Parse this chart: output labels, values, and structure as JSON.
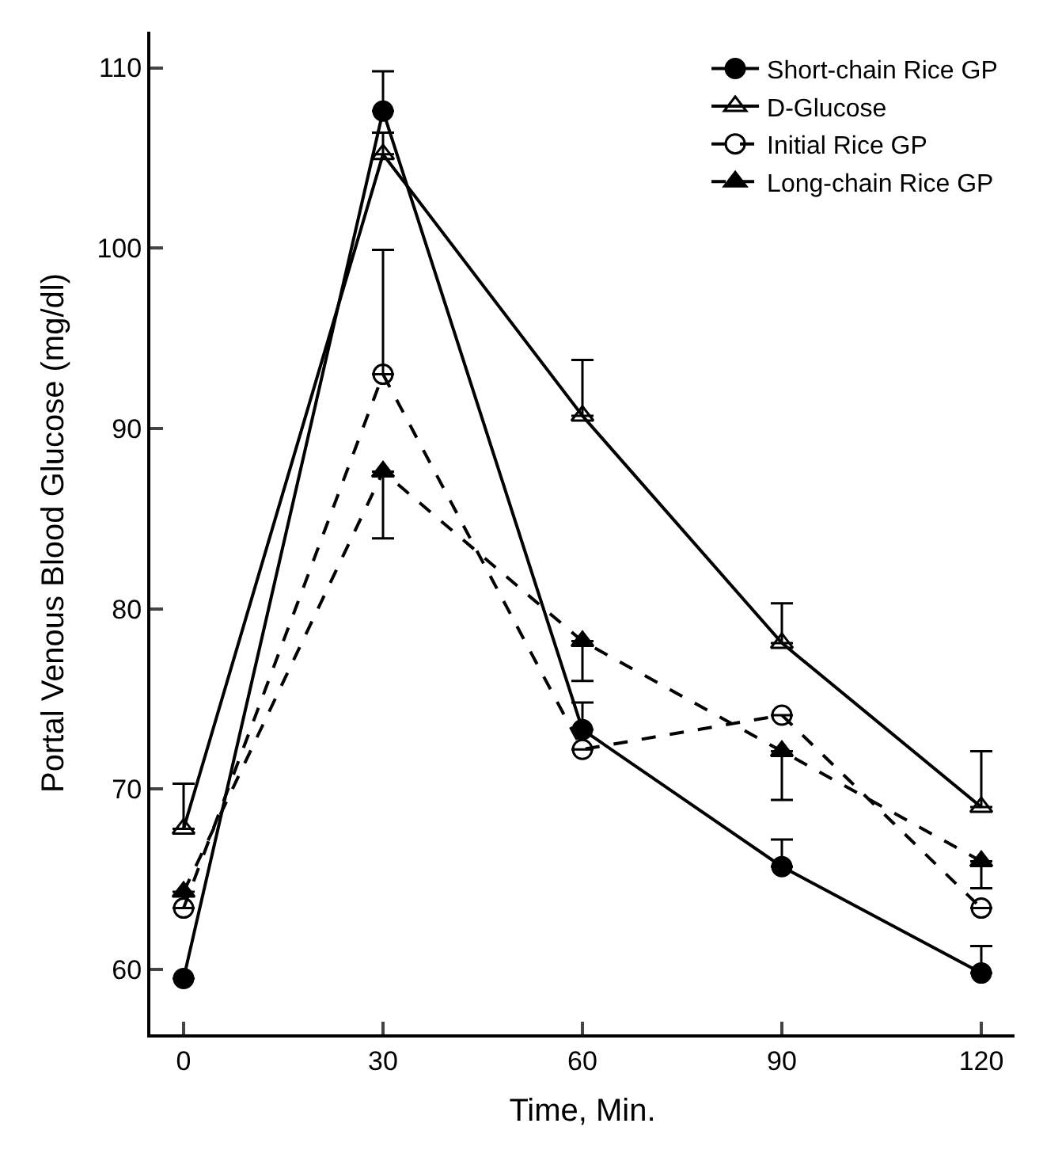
{
  "chart_data": {
    "type": "line",
    "xlabel": "Time, Min.",
    "ylabel": "Portal Venous Blood Glucose (mg/dl)",
    "x": [
      0,
      30,
      60,
      90,
      120
    ],
    "series": [
      {
        "name": "Short-chain Rice GP",
        "color": "#000000",
        "marker": "circle",
        "line_style": "solid",
        "values": [
          59.5,
          107.6,
          73.3,
          65.7,
          59.8
        ],
        "errors": [
          null,
          [
            107.6,
            109.8
          ],
          [
            73.3,
            74.8
          ],
          [
            65.7,
            67.2
          ],
          [
            59.8,
            61.3
          ]
        ]
      },
      {
        "name": "D-Glucose",
        "color": "#000000",
        "marker": "triangle-open",
        "line_style": "solid",
        "values": [
          67.8,
          105.2,
          90.7,
          78.1,
          69.0
        ],
        "errors": [
          [
            67.8,
            70.3
          ],
          [
            105.2,
            106.4
          ],
          [
            90.7,
            93.8
          ],
          [
            78.1,
            80.3
          ],
          [
            69.0,
            72.1
          ]
        ]
      },
      {
        "name": "Initial Rice GP",
        "color": "#000000",
        "marker": "circle-open",
        "line_style": "dashed",
        "values": [
          63.4,
          93.0,
          72.2,
          74.1,
          63.4
        ],
        "errors": [
          null,
          [
            93.0,
            99.9
          ],
          null,
          null,
          null
        ]
      },
      {
        "name": "Long-chain Rice GP",
        "color": "#000000",
        "marker": "triangle",
        "line_style": "dashed",
        "values": [
          64.3,
          87.6,
          78.2,
          72.1,
          66.0
        ],
        "errors": [
          null,
          [
            83.9,
            87.6
          ],
          [
            76.0,
            78.2
          ],
          [
            69.4,
            72.1
          ],
          [
            64.5,
            66.0
          ]
        ]
      }
    ],
    "xlim": [
      -5,
      125
    ],
    "xticks": [
      0,
      30,
      60,
      90,
      120
    ],
    "ylim": [
      56.4,
      112
    ],
    "yticks": [
      60,
      70,
      80,
      90,
      100,
      110
    ],
    "legend": "top right"
  }
}
